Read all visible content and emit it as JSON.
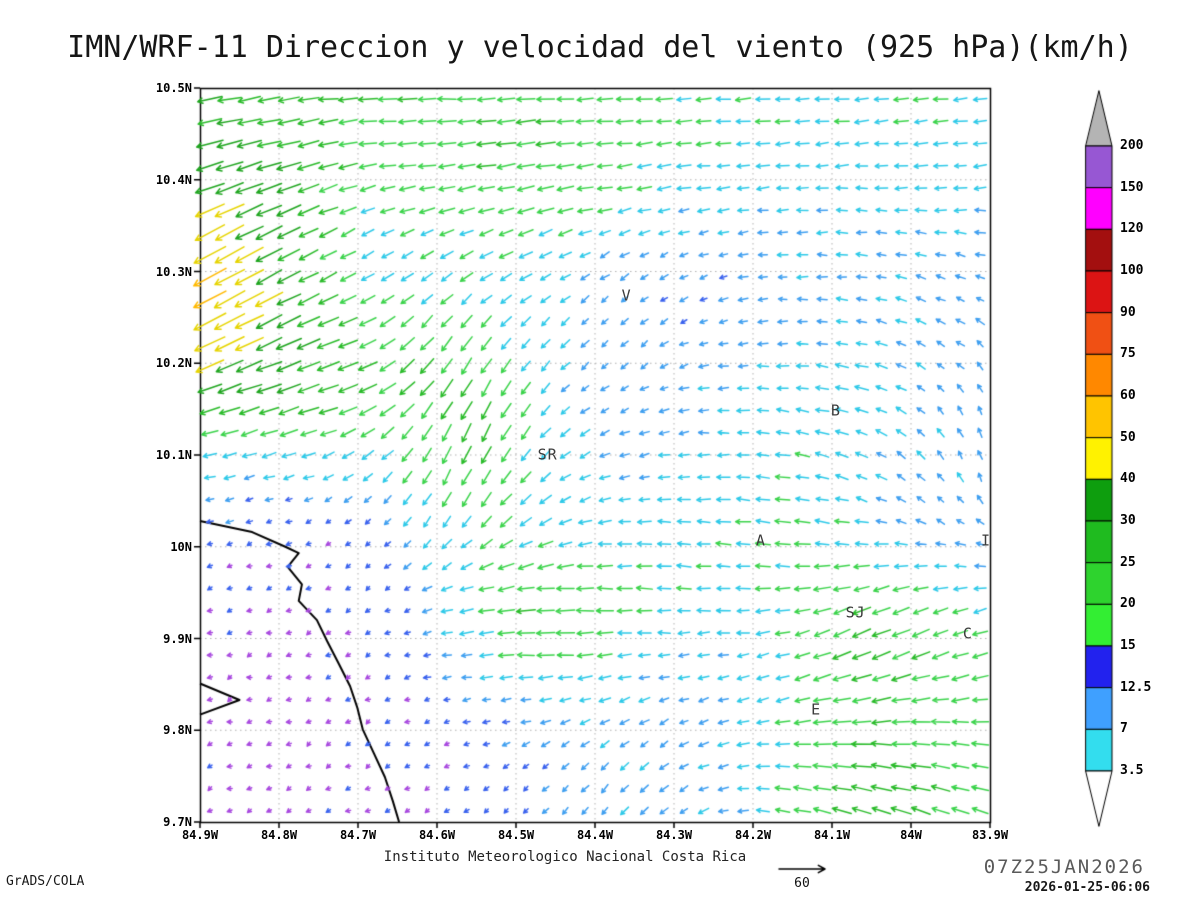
{
  "title": "IMN/WRF-11 Direccion y velocidad del viento (925 hPa)(km/h)",
  "footer": {
    "institute": "Instituto Meteorologico Nacional Costa Rica",
    "ref_value": "60",
    "timestamp_main": "07Z25JAN2026",
    "timestamp_sub": "2026-01-25-06:06",
    "credit": "GrADS/COLA"
  },
  "chart_data": {
    "type": "vector-field-map",
    "variable": "Direccion y velocidad del viento",
    "level": "925 hPa",
    "units": "km/h",
    "lon_range_w": [
      84.9,
      83.9
    ],
    "lat_range_n": [
      9.7,
      10.5
    ],
    "x_ticks": [
      "84.9W",
      "84.8W",
      "84.7W",
      "84.6W",
      "84.5W",
      "84.4W",
      "84.3W",
      "84.2W",
      "84.1W",
      "84W",
      "83.9W"
    ],
    "y_ticks": [
      "10.5N",
      "10.4N",
      "10.3N",
      "10.2N",
      "10.1N",
      "10N",
      "9.9N",
      "9.8N",
      "9.7N"
    ],
    "grid": {
      "cols": 40,
      "rows": 33
    },
    "reference_vector_kmh": 60,
    "colorbar": {
      "levels": [
        3.5,
        7,
        12.5,
        15,
        20,
        25,
        30,
        40,
        50,
        60,
        75,
        90,
        100,
        120,
        150,
        200
      ],
      "interval_colors_bottom_to_top": [
        "#33DDEE",
        "#3FA0FF",
        "#2222EE",
        "#33EE33",
        "#2ED32E",
        "#1FBB1F",
        "#0E9E0E",
        "#FFF200",
        "#FFC400",
        "#FF8800",
        "#F05014",
        "#DC1414",
        "#A30F0F",
        "#FF00FF",
        "#9757D3"
      ],
      "cap_top_color": "#B4B4B4",
      "cap_bottom_color": "#FFFFFF"
    },
    "arrow_speed_colors": [
      [
        5,
        "#A848DF"
      ],
      [
        10,
        "#3A62EE"
      ],
      [
        14,
        "#3F9FF0"
      ],
      [
        19,
        "#2EC9E8"
      ],
      [
        25,
        "#3BD34B"
      ],
      [
        32,
        "#2ABB2A"
      ],
      [
        40,
        "#1FA51F"
      ],
      [
        48,
        "#E6D400"
      ],
      [
        57,
        "#FFB900"
      ],
      [
        68,
        "#FF8A00"
      ],
      [
        82,
        "#F25200"
      ],
      [
        9999,
        "#E02222"
      ]
    ],
    "stations": [
      {
        "label": "V",
        "lon_w": 84.36,
        "lat": 10.273
      },
      {
        "label": "SR",
        "lon_w": 84.46,
        "lat": 10.1
      },
      {
        "label": "B",
        "lon_w": 84.095,
        "lat": 10.148
      },
      {
        "label": "A",
        "lon_w": 84.19,
        "lat": 10.006
      },
      {
        "label": "SJ",
        "lon_w": 84.07,
        "lat": 9.928
      },
      {
        "label": "C",
        "lon_w": 83.928,
        "lat": 9.905
      },
      {
        "label": "E",
        "lon_w": 84.12,
        "lat": 9.822
      },
      {
        "label": "I",
        "lon_w": 83.905,
        "lat": 10.006
      }
    ],
    "coastline_lonw_lat": [
      [
        84.9,
        10.028
      ],
      [
        84.834,
        10.016
      ],
      [
        84.792,
        10.0
      ],
      [
        84.775,
        9.993
      ],
      [
        84.789,
        9.978
      ],
      [
        84.771,
        9.959
      ],
      [
        84.775,
        9.941
      ],
      [
        84.752,
        9.92
      ],
      [
        84.739,
        9.897
      ],
      [
        84.724,
        9.872
      ],
      [
        84.71,
        9.848
      ],
      [
        84.701,
        9.825
      ],
      [
        84.694,
        9.801
      ],
      [
        84.68,
        9.775
      ],
      [
        84.666,
        9.749
      ],
      [
        84.656,
        9.723
      ],
      [
        84.648,
        9.7
      ]
    ],
    "coastline_spur": [
      [
        84.9,
        9.851
      ],
      [
        84.85,
        9.833
      ],
      [
        84.9,
        9.817
      ]
    ],
    "flow_control_points": [
      [
        84.88,
        10.49,
        -25,
        -2
      ],
      [
        84.72,
        10.49,
        -23,
        1
      ],
      [
        84.55,
        10.49,
        -21,
        0
      ],
      [
        84.38,
        10.49,
        -20,
        -1
      ],
      [
        84.2,
        10.49,
        -19,
        -1
      ],
      [
        84.02,
        10.49,
        -19,
        -2
      ],
      [
        83.9,
        10.49,
        -20,
        -2
      ],
      [
        84.85,
        10.45,
        -28,
        -4
      ],
      [
        84.6,
        10.45,
        -24,
        -2
      ],
      [
        84.35,
        10.45,
        -20,
        -1
      ],
      [
        84.1,
        10.45,
        -18,
        -1
      ],
      [
        83.92,
        10.45,
        -17,
        -2
      ],
      [
        84.88,
        10.41,
        -44,
        -8
      ],
      [
        84.78,
        10.4,
        -34,
        -10
      ],
      [
        84.6,
        10.42,
        -28,
        3
      ],
      [
        84.45,
        10.4,
        -30,
        -2
      ],
      [
        84.3,
        10.41,
        -22,
        -2
      ],
      [
        84.15,
        10.41,
        -18,
        -2
      ],
      [
        83.95,
        10.41,
        -16,
        -3
      ],
      [
        84.5,
        10.37,
        -32,
        -8
      ],
      [
        84.87,
        10.34,
        -40,
        -22
      ],
      [
        84.83,
        10.31,
        -34,
        -26
      ],
      [
        84.87,
        10.27,
        -62,
        -38
      ],
      [
        84.74,
        10.31,
        -6,
        -5
      ],
      [
        84.66,
        10.33,
        -12,
        -9
      ],
      [
        84.55,
        10.33,
        -14,
        -10
      ],
      [
        84.45,
        10.32,
        -8,
        -6
      ],
      [
        84.33,
        10.3,
        -6,
        -5
      ],
      [
        84.2,
        10.33,
        -12,
        -2
      ],
      [
        84.08,
        10.31,
        -13,
        2
      ],
      [
        83.93,
        10.3,
        -12,
        4
      ],
      [
        84.82,
        10.25,
        -38,
        -18
      ],
      [
        84.72,
        10.26,
        -8,
        -5
      ],
      [
        84.6,
        10.26,
        -10,
        -10
      ],
      [
        84.5,
        10.26,
        -9,
        -8
      ],
      [
        84.36,
        10.25,
        -5,
        -14
      ],
      [
        84.25,
        10.26,
        -7,
        -5
      ],
      [
        84.12,
        10.26,
        -10,
        0
      ],
      [
        83.97,
        10.25,
        -10,
        5
      ],
      [
        84.2,
        10.24,
        -12,
        0
      ],
      [
        84.77,
        10.2,
        -46,
        -10
      ],
      [
        84.7,
        10.17,
        -42,
        -8
      ],
      [
        84.85,
        10.16,
        -30,
        -6
      ],
      [
        84.88,
        10.11,
        -16,
        -2
      ],
      [
        84.6,
        10.2,
        -18,
        -25
      ],
      [
        84.56,
        10.15,
        -12,
        -42
      ],
      [
        84.45,
        10.17,
        -12,
        -8
      ],
      [
        84.35,
        10.17,
        -7,
        -5
      ],
      [
        84.25,
        10.15,
        -20,
        2
      ],
      [
        84.12,
        10.16,
        -22,
        4
      ],
      [
        84.05,
        10.18,
        -24,
        3
      ],
      [
        83.94,
        10.2,
        -8,
        8
      ],
      [
        83.92,
        10.13,
        0,
        16
      ],
      [
        84.8,
        10.07,
        -5,
        -3
      ],
      [
        84.7,
        10.08,
        -5,
        -3
      ],
      [
        84.62,
        10.08,
        -8,
        -18
      ],
      [
        84.54,
        10.06,
        -10,
        -40
      ],
      [
        84.46,
        10.1,
        -14,
        -4
      ],
      [
        84.38,
        10.08,
        -12,
        -3
      ],
      [
        84.28,
        10.08,
        -10,
        -4
      ],
      [
        84.2,
        10.09,
        -16,
        0
      ],
      [
        84.1,
        10.07,
        -12,
        6
      ],
      [
        84.0,
        10.07,
        -8,
        12
      ],
      [
        83.93,
        10.05,
        2,
        14
      ],
      [
        84.85,
        10.0,
        -4,
        -2
      ],
      [
        84.75,
        10.0,
        -4,
        -2
      ],
      [
        84.65,
        10.0,
        -5,
        -3
      ],
      [
        84.55,
        10.0,
        -7,
        -8
      ],
      [
        84.45,
        10.01,
        -8,
        -7
      ],
      [
        84.35,
        10.0,
        -18,
        2
      ],
      [
        84.25,
        10.0,
        -24,
        4
      ],
      [
        84.15,
        9.98,
        -27,
        6
      ],
      [
        84.05,
        9.99,
        -20,
        4
      ],
      [
        83.95,
        9.99,
        -16,
        3
      ],
      [
        84.85,
        9.92,
        -3,
        -1
      ],
      [
        84.75,
        9.9,
        -4,
        -2
      ],
      [
        84.62,
        9.92,
        -5,
        -3
      ],
      [
        84.52,
        9.935,
        -48,
        6
      ],
      [
        84.45,
        9.92,
        -40,
        5
      ],
      [
        84.35,
        9.94,
        -28,
        4
      ],
      [
        84.25,
        9.93,
        -16,
        2
      ],
      [
        84.18,
        9.9,
        -10,
        -4
      ],
      [
        84.06,
        9.9,
        -30,
        -30
      ],
      [
        83.99,
        9.92,
        -22,
        -18
      ],
      [
        83.92,
        9.895,
        -20,
        -4
      ],
      [
        84.85,
        9.83,
        -3,
        -1
      ],
      [
        84.72,
        9.84,
        -3,
        -2
      ],
      [
        84.6,
        9.83,
        -4,
        -2
      ],
      [
        84.5,
        9.84,
        -5,
        -3
      ],
      [
        84.4,
        9.86,
        -9,
        -6
      ],
      [
        84.3,
        9.86,
        -10,
        -4
      ],
      [
        84.2,
        9.84,
        -8,
        -5
      ],
      [
        84.12,
        9.82,
        -24,
        -12
      ],
      [
        84.02,
        9.84,
        -26,
        -6
      ],
      [
        83.93,
        9.85,
        -14,
        -10
      ],
      [
        84.85,
        9.73,
        -3,
        -2
      ],
      [
        84.7,
        9.74,
        -3,
        -2
      ],
      [
        84.58,
        9.75,
        -5,
        -3
      ],
      [
        84.48,
        9.74,
        -6,
        -5
      ],
      [
        84.38,
        9.73,
        -7,
        -14
      ],
      [
        84.3,
        9.76,
        -10,
        -10
      ],
      [
        84.33,
        9.7,
        -10,
        -12
      ],
      [
        84.22,
        9.74,
        -16,
        5
      ],
      [
        84.12,
        9.75,
        -24,
        10
      ],
      [
        84.02,
        9.73,
        -28,
        12
      ],
      [
        83.92,
        9.74,
        -20,
        12
      ],
      [
        84.05,
        9.79,
        -30,
        8
      ],
      [
        83.95,
        9.78,
        -24,
        6
      ]
    ]
  }
}
